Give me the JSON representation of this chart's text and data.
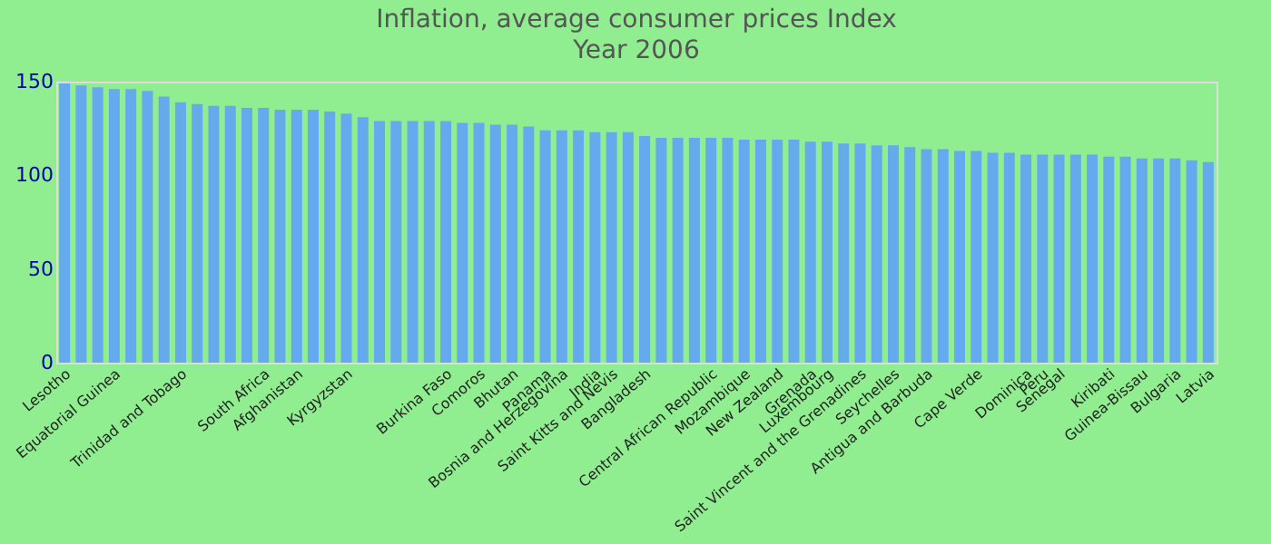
{
  "chart_data": {
    "type": "bar",
    "title": "Inflation, average consumer prices  Index",
    "subtitle": "Year 2006",
    "categories": [
      "Lesotho",
      null,
      null,
      "Equatorial Guinea",
      null,
      null,
      null,
      "Trinidad and Tobago",
      null,
      null,
      null,
      null,
      "South Africa",
      null,
      "Afghanistan",
      null,
      null,
      "Kyrgyzstan",
      null,
      null,
      null,
      null,
      null,
      "Burkina Faso",
      null,
      "Comoros",
      null,
      "Bhutan",
      null,
      "Panama",
      "Bosnia and Herzegovina",
      null,
      "India",
      "Saint Kitts and Nevis",
      null,
      "Bangladesh",
      null,
      null,
      null,
      "Central African Republic",
      null,
      "Mozambique",
      null,
      "New Zealand",
      null,
      "Grenada",
      "Luxembourg",
      null,
      "Saint Vincent and the Grenadines",
      null,
      "Seychelles",
      null,
      "Antigua and Barbuda",
      null,
      null,
      "Cape Verde",
      null,
      null,
      "Dominica",
      "Peru",
      "Senegal",
      null,
      null,
      "Kiribati",
      null,
      "Guinea-Bissau",
      null,
      "Bulgaria",
      null,
      "Latvia"
    ],
    "values": [
      149,
      148,
      147,
      146,
      146,
      145,
      142,
      139,
      138,
      137,
      137,
      136,
      136,
      135,
      135,
      135,
      134,
      133,
      131,
      129,
      129,
      129,
      129,
      129,
      128,
      128,
      127,
      127,
      126,
      124,
      124,
      124,
      123,
      123,
      123,
      121,
      120,
      120,
      120,
      120,
      120,
      119,
      119,
      119,
      119,
      118,
      118,
      117,
      117,
      116,
      116,
      115,
      114,
      114,
      113,
      113,
      112,
      112,
      111,
      111,
      111,
      111,
      111,
      110,
      110,
      109,
      109,
      109,
      108,
      107
    ],
    "color": "#66aaee",
    "ylim": [
      0,
      150
    ],
    "yticks": [
      0,
      50,
      100,
      150
    ],
    "grid": false
  }
}
